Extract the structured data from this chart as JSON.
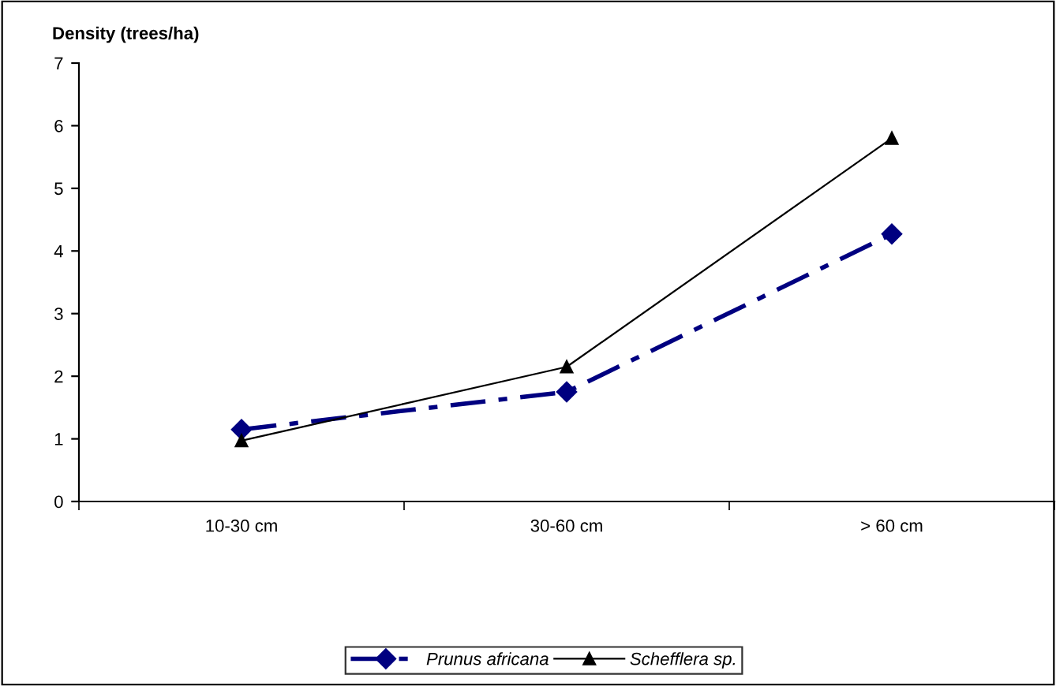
{
  "chart_data": {
    "type": "line",
    "ylabel": "Density (trees/ha)",
    "categories": [
      "10-30 cm",
      "30-60 cm",
      "> 60 cm"
    ],
    "series": [
      {
        "name": "Prunus africana",
        "color": "#000080",
        "values": [
          1.15,
          1.75,
          4.27
        ],
        "marker": "diamond",
        "line_style": "dashed"
      },
      {
        "name": "Schefflera sp.",
        "color": "#000000",
        "values": [
          0.97,
          2.15,
          5.8
        ],
        "marker": "triangle",
        "line_style": "solid"
      }
    ],
    "ylim": [
      0,
      7
    ],
    "yticks": [
      0,
      1,
      2,
      3,
      4,
      5,
      6,
      7
    ],
    "grid": false,
    "legend": "bottom"
  }
}
